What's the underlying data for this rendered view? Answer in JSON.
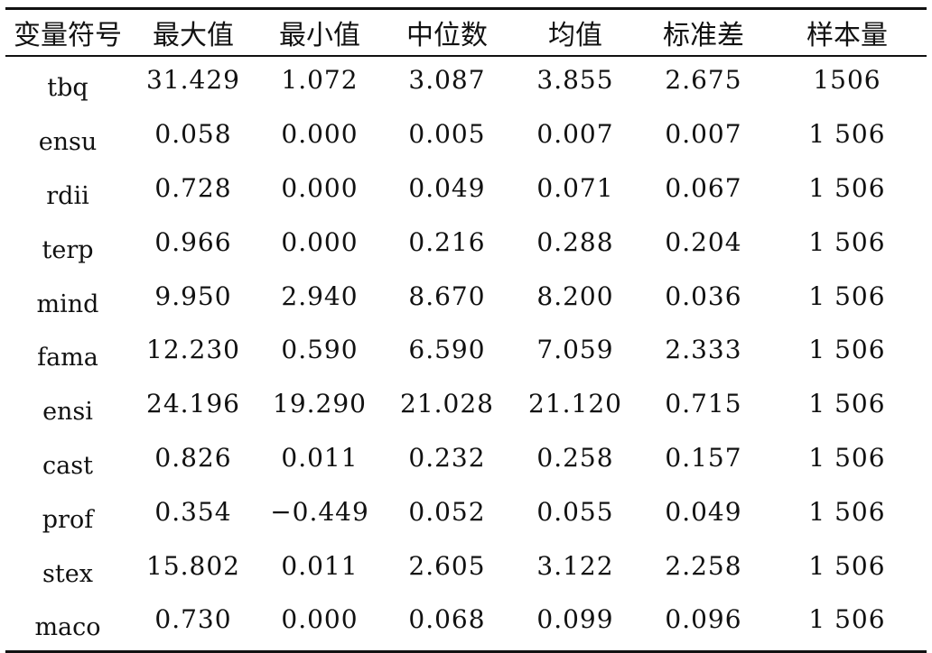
{
  "table": {
    "headers": [
      "变量符号",
      "最大值",
      "最小值",
      "中位数",
      "均值",
      "标准差",
      "样本量"
    ],
    "rows": [
      [
        "tbq",
        "31.429",
        "1.072",
        "3.087",
        "3.855",
        "2.675",
        "1506"
      ],
      [
        "ensu",
        "0.058",
        "0.000",
        "0.005",
        "0.007",
        "0.007",
        "1 506"
      ],
      [
        "rdii",
        "0.728",
        "0.000",
        "0.049",
        "0.071",
        "0.067",
        "1 506"
      ],
      [
        "terp",
        "0.966",
        "0.000",
        "0.216",
        "0.288",
        "0.204",
        "1 506"
      ],
      [
        "mind",
        "9.950",
        "2.940",
        "8.670",
        "8.200",
        "0.036",
        "1 506"
      ],
      [
        "fama",
        "12.230",
        "0.590",
        "6.590",
        "7.059",
        "2.333",
        "1 506"
      ],
      [
        "ensi",
        "24.196",
        "19.290",
        "21.028",
        "21.120",
        "0.715",
        "1 506"
      ],
      [
        "cast",
        "0.826",
        "0.011",
        "0.232",
        "0.258",
        "0.157",
        "1 506"
      ],
      [
        "prof",
        "0.354",
        "−0.449",
        "0.052",
        "0.055",
        "0.049",
        "1 506"
      ],
      [
        "stex",
        "15.802",
        "0.011",
        "2.605",
        "3.122",
        "2.258",
        "1 506"
      ],
      [
        "maco",
        "0.730",
        "0.000",
        "0.068",
        "0.099",
        "0.096",
        "1 506"
      ]
    ]
  }
}
